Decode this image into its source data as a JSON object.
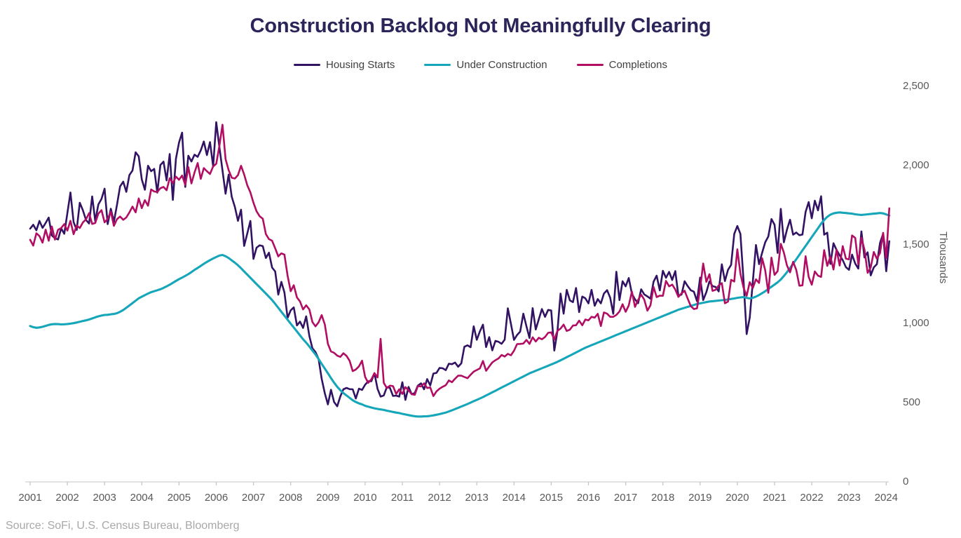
{
  "title": "Construction Backlog Not Meaningfully Clearing",
  "source_note": "Source: SoFi, U.S. Census Bureau, Bloomberg",
  "colors": {
    "title": "#2b2559",
    "housing_starts": "#321263",
    "under_construction": "#16a6b9",
    "completions": "#b00d63",
    "axis_line": "#d9d9d9",
    "tick_mark": "#c3c3c3",
    "axis_label": "#595959",
    "legend_text": "#3f3f3f",
    "source_text": "#a8a8a8"
  },
  "legend": [
    {
      "label": "Housing Starts",
      "color": "#321263"
    },
    {
      "label": "Under Construction",
      "color": "#16a6b9"
    },
    {
      "label": "Completions",
      "color": "#b00d63"
    }
  ],
  "chart_data": {
    "type": "line",
    "title": "Construction Backlog Not Meaningfully Clearing",
    "xlabel": "",
    "ylabel": "Thousands",
    "ylim": [
      0,
      2500
    ],
    "grid": false,
    "legend_position": "top",
    "frequency": "monthly",
    "x_start": "2001-01",
    "x_end": "2024-02",
    "x_tick_labels": [
      "2001",
      "2002",
      "2003",
      "2004",
      "2005",
      "2006",
      "2007",
      "2008",
      "2009",
      "2010",
      "2011",
      "2012",
      "2013",
      "2014",
      "2015",
      "2016",
      "2017",
      "2018",
      "2019",
      "2020",
      "2021",
      "2022",
      "2023",
      "2024"
    ],
    "y_tick_values": [
      2500,
      2000,
      1500,
      1000,
      500,
      0
    ],
    "y_tick_labels": [
      "2,500",
      "2,000",
      "1,500",
      "1,000",
      "500",
      "0"
    ],
    "series": [
      {
        "name": "Housing Starts",
        "color": "#321263",
        "values": [
          1600,
          1625,
          1590,
          1649,
          1605,
          1636,
          1670,
          1557,
          1540,
          1532,
          1602,
          1568,
          1698,
          1829,
          1642,
          1592,
          1764,
          1717,
          1655,
          1633,
          1804,
          1648,
          1753,
          1788,
          1853,
          1629,
          1726,
          1643,
          1751,
          1867,
          1897,
          1833,
          1939,
          1967,
          2083,
          2057,
          1911,
          1846,
          1998,
          1963,
          1978,
          1828,
          2002,
          2024,
          1905,
          2072,
          1782,
          2042,
          2144,
          2207,
          1864,
          2061,
          2025,
          2068,
          2054,
          2095,
          2151,
          2065,
          2147,
          1994,
          2273,
          2119,
          1969,
          1821,
          1942,
          1802,
          1737,
          1650,
          1720,
          1491,
          1570,
          1649,
          1409,
          1480,
          1495,
          1490,
          1415,
          1448,
          1354,
          1330,
          1183,
          1264,
          1197,
          1037,
          1084,
          1103,
          989,
          1013,
          973,
          1046,
          923,
          844,
          820,
          777,
          652,
          560,
          490,
          582,
          505,
          478,
          540,
          585,
          594,
          586,
          585,
          527,
          589,
          581,
          614,
          636,
          636,
          687,
          588,
          539,
          546,
          599,
          594,
          543,
          545,
          539,
          630,
          518,
          600,
          554,
          561,
          608,
          623,
          585,
          650,
          610,
          685,
          689,
          720,
          718,
          706,
          747,
          744,
          754,
          728,
          749,
          854,
          863,
          851,
          983,
          898,
          951,
          994,
          852,
          915,
          831,
          891,
          885,
          873,
          899,
          1097,
          999,
          897,
          928,
          950,
          1063,
          984,
          909,
          1098,
          963,
          1028,
          1092,
          1043,
          1087,
          1083,
          830,
          954,
          1190,
          1063,
          1213,
          1147,
          1136,
          1225,
          1073,
          1171,
          1160,
          1128,
          1213,
          1113,
          1155,
          1128,
          1190,
          1212,
          1164,
          1062,
          1328,
          1149,
          1268,
          1236,
          1288,
          1189,
          1154,
          1129,
          1217,
          1185,
          1172,
          1158,
          1265,
          1303,
          1210,
          1334,
          1290,
          1327,
          1276,
          1332,
          1177,
          1184,
          1268,
          1237,
          1211,
          1202,
          1142,
          1291,
          1149,
          1199,
          1267,
          1237,
          1232,
          1204,
          1375,
          1269,
          1340,
          1371,
          1567,
          1617,
          1567,
          1269,
          934,
          1038,
          1265,
          1497,
          1376,
          1448,
          1514,
          1551,
          1661,
          1625,
          1447,
          1725,
          1514,
          1594,
          1657,
          1562,
          1576,
          1559,
          1563,
          1706,
          1768,
          1666,
          1777,
          1716,
          1805,
          1562,
          1575,
          1377,
          1508,
          1465,
          1432,
          1401,
          1357,
          1340,
          1436,
          1380,
          1348,
          1583,
          1418,
          1451,
          1305,
          1356,
          1376,
          1510,
          1568,
          1331,
          1521
        ]
      },
      {
        "name": "Under Construction",
        "color": "#16a6b9",
        "values": [
          985,
          978,
          974,
          976,
          980,
          986,
          992,
          996,
          998,
          997,
          995,
          996,
          998,
          1000,
          1003,
          1007,
          1012,
          1017,
          1021,
          1026,
          1033,
          1040,
          1046,
          1051,
          1055,
          1056,
          1059,
          1061,
          1066,
          1075,
          1086,
          1100,
          1115,
          1130,
          1145,
          1160,
          1170,
          1180,
          1190,
          1199,
          1205,
          1211,
          1217,
          1226,
          1236,
          1246,
          1258,
          1270,
          1281,
          1291,
          1302,
          1313,
          1326,
          1340,
          1352,
          1365,
          1378,
          1390,
          1401,
          1412,
          1421,
          1430,
          1434,
          1426,
          1415,
          1400,
          1385,
          1369,
          1350,
          1330,
          1310,
          1290,
          1270,
          1250,
          1230,
          1210,
          1190,
          1170,
          1149,
          1125,
          1100,
          1075,
          1050,
          1025,
          1000,
          976,
          951,
          926,
          901,
          880,
          856,
          830,
          805,
          776,
          746,
          716,
          686,
          656,
          627,
          601,
          580,
          561,
          546,
          531,
          516,
          505,
          496,
          490,
          481,
          475,
          470,
          465,
          461,
          458,
          455,
          450,
          446,
          442,
          438,
          435,
          430,
          426,
          422,
          418,
          415,
          413,
          413,
          414,
          415,
          417,
          420,
          424,
          428,
          433,
          438,
          445,
          452,
          460,
          468,
          476,
          484,
          492,
          501,
          510,
          518,
          527,
          536,
          546,
          556,
          566,
          576,
          586,
          596,
          606,
          616,
          626,
          636,
          646,
          656,
          666,
          676,
          686,
          694,
          702,
          710,
          718,
          726,
          734,
          742,
          750,
          759,
          768,
          778,
          788,
          798,
          808,
          818,
          828,
          838,
          848,
          856,
          864,
          872,
          880,
          888,
          896,
          904,
          912,
          920,
          928,
          936,
          944,
          952,
          960,
          968,
          976,
          984,
          992,
          1000,
          1008,
          1016,
          1024,
          1032,
          1040,
          1048,
          1056,
          1064,
          1072,
          1080,
          1088,
          1094,
          1100,
          1106,
          1112,
          1118,
          1124,
          1128,
          1132,
          1136,
          1140,
          1142,
          1144,
          1146,
          1148,
          1150,
          1153,
          1156,
          1159,
          1163,
          1166,
          1168,
          1163,
          1159,
          1163,
          1171,
          1181,
          1193,
          1205,
          1219,
          1233,
          1247,
          1261,
          1279,
          1301,
          1325,
          1351,
          1379,
          1407,
          1435,
          1463,
          1491,
          1519,
          1547,
          1575,
          1603,
          1631,
          1655,
          1675,
          1689,
          1697,
          1701,
          1703,
          1701,
          1699,
          1697,
          1695,
          1691,
          1689,
          1687,
          1689,
          1691,
          1693,
          1695,
          1697,
          1699,
          1697,
          1690,
          1683
        ]
      },
      {
        "name": "Completions",
        "color": "#b00d63",
        "values": [
          1530,
          1493,
          1571,
          1553,
          1512,
          1594,
          1524,
          1614,
          1531,
          1593,
          1604,
          1629,
          1588,
          1650,
          1565,
          1620,
          1604,
          1639,
          1659,
          1698,
          1630,
          1636,
          1695,
          1717,
          1640,
          1661,
          1708,
          1618,
          1660,
          1677,
          1656,
          1671,
          1703,
          1740,
          1703,
          1791,
          1730,
          1780,
          1745,
          1848,
          1835,
          1832,
          1856,
          1864,
          1843,
          1919,
          1888,
          1929,
          1909,
          1936,
          1877,
          1990,
          1886,
          1955,
          2015,
          1915,
          1983,
          1963,
          1946,
          1994,
          2010,
          2121,
          2257,
          2040,
          1970,
          1922,
          1917,
          1939,
          1998,
          1943,
          1874,
          1830,
          1764,
          1710,
          1678,
          1663,
          1566,
          1534,
          1524,
          1476,
          1425,
          1444,
          1436,
          1303,
          1205,
          1243,
          1166,
          1140,
          1090,
          1116,
          1090,
          1010,
          983,
          1008,
          1054,
          995,
          872,
          824,
          816,
          798,
          790,
          813,
          796,
          765,
          700,
          710,
          730,
          766,
          663,
          626,
          648,
          687,
          660,
          904,
          626,
          593,
          608,
          605,
          556,
          585,
          556,
          599,
          579,
          554,
          550,
          606,
          603,
          623,
          593,
          597,
          542,
          572,
          589,
          601,
          611,
          641,
          630,
          652,
          671,
          671,
          663,
          655,
          677,
          697,
          707,
          717,
          764,
          702,
          729,
          755,
          769,
          780,
          802,
          792,
          809,
          800,
          829,
          871,
          872,
          874,
          897,
          872,
          914,
          887,
          911,
          901,
          916,
          942,
          945,
          900,
          955,
          969,
          994,
          954,
          962,
          988,
          990,
          1019,
          990,
          1026,
          1021,
          1043,
          1038,
          1062,
          985,
          1071,
          1063,
          1043,
          1043,
          1055,
          1077,
          1123,
          1075,
          1115,
          1203,
          1106,
          1150,
          1183,
          1152,
          1082,
          1116,
          1232,
          1168,
          1177,
          1176,
          1270,
          1236,
          1247,
          1216,
          1169,
          1191,
          1208,
          1158,
          1111,
          1092,
          1097,
          1222,
          1380,
          1264,
          1312,
          1207,
          1214,
          1241,
          1256,
          1129,
          1139,
          1277,
          1266,
          1470,
          1316,
          1227,
          1176,
          1262,
          1225,
          1280,
          1257,
          1413,
          1337,
          1195,
          1417,
          1308,
          1332,
          1505,
          1449,
          1368,
          1324,
          1391,
          1339,
          1240,
          1242,
          1426,
          1295,
          1246,
          1330,
          1303,
          1295,
          1465,
          1365,
          1424,
          1342,
          1468,
          1367,
          1490,
          1411,
          1406,
          1557,
          1542,
          1375,
          1542,
          1468,
          1321,
          1355,
          1453,
          1410,
          1447,
          1574,
          1416,
          1729
        ]
      }
    ]
  }
}
